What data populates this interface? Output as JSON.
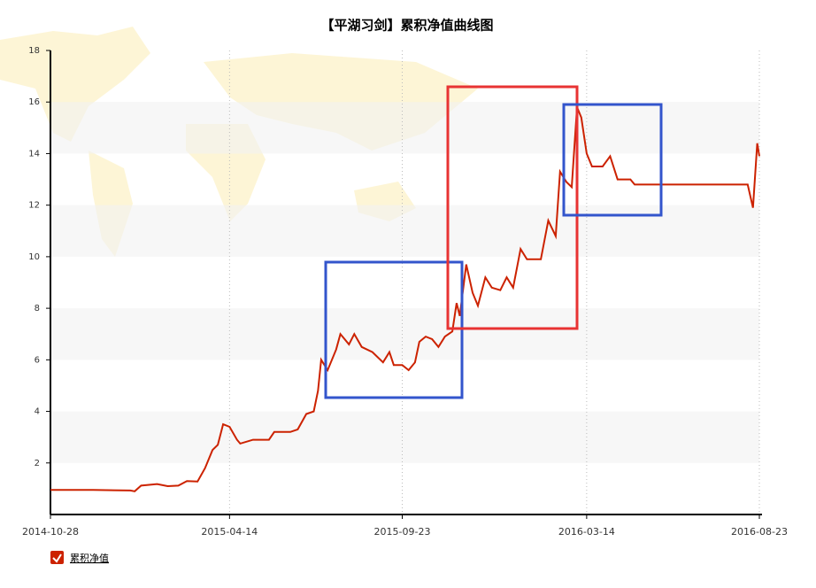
{
  "chart_data": {
    "type": "line",
    "title": "【平湖习剑】累积净值曲线图",
    "x": [
      "2014-10-28",
      "2014-12-07",
      "2015-01-11",
      "2015-01-15",
      "2015-01-21",
      "2015-02-05",
      "2015-02-15",
      "2015-02-25",
      "2015-03-05",
      "2015-03-15",
      "2015-03-22",
      "2015-03-29",
      "2015-04-03",
      "2015-04-08",
      "2015-04-14",
      "2015-04-21",
      "2015-04-24",
      "2015-05-06",
      "2015-05-21",
      "2015-05-26",
      "2015-06-10",
      "2015-06-17",
      "2015-06-25",
      "2015-07-02",
      "2015-07-06",
      "2015-07-09",
      "2015-07-15",
      "2015-07-23",
      "2015-07-27",
      "2015-08-04",
      "2015-08-09",
      "2015-08-16",
      "2015-08-26",
      "2015-09-05",
      "2015-09-11",
      "2015-09-15",
      "2015-09-23",
      "2015-09-29",
      "2015-10-05",
      "2015-10-09",
      "2015-10-15",
      "2015-10-21",
      "2015-10-27",
      "2015-11-02",
      "2015-11-09",
      "2015-11-13",
      "2015-11-16",
      "2015-11-22",
      "2015-11-28",
      "2015-12-03",
      "2015-12-10",
      "2015-12-16",
      "2015-12-24",
      "2015-12-30",
      "2016-01-05",
      "2016-01-12",
      "2016-01-18",
      "2016-01-31",
      "2016-02-07",
      "2016-02-14",
      "2016-02-18",
      "2016-02-24",
      "2016-02-29",
      "2016-03-05",
      "2016-03-09",
      "2016-03-14",
      "2016-03-19",
      "2016-03-29",
      "2016-04-05",
      "2016-04-12",
      "2016-04-24",
      "2016-04-28",
      "2016-08-12",
      "2016-08-17",
      "2016-08-21",
      "2016-08-23"
    ],
    "series": [
      {
        "name": "累积净值",
        "color": "#cc2200",
        "values": [
          0.95,
          0.95,
          0.93,
          0.9,
          1.12,
          1.18,
          1.1,
          1.12,
          1.3,
          1.28,
          1.8,
          2.5,
          2.7,
          3.5,
          3.4,
          2.9,
          2.75,
          2.9,
          2.9,
          3.2,
          3.2,
          3.3,
          3.9,
          4.0,
          4.8,
          6.0,
          5.6,
          6.4,
          7.0,
          6.6,
          7.0,
          6.5,
          6.3,
          5.9,
          6.3,
          5.8,
          5.8,
          5.6,
          5.9,
          6.7,
          6.9,
          6.8,
          6.5,
          6.9,
          7.1,
          8.2,
          7.7,
          9.7,
          8.6,
          8.1,
          9.2,
          8.8,
          8.7,
          9.2,
          8.8,
          10.3,
          9.9,
          9.9,
          11.4,
          10.8,
          13.3,
          12.9,
          12.7,
          15.8,
          15.4,
          14.0,
          13.5,
          13.5,
          13.9,
          13.0,
          13.0,
          12.8,
          12.8,
          11.9,
          14.4,
          13.9
        ]
      }
    ],
    "xlim": [
      "2014-10-28",
      "2016-08-23"
    ],
    "xticks": [
      "2014-10-28",
      "2015-04-14",
      "2015-09-23",
      "2016-03-14",
      "2016-08-23"
    ],
    "ylim": [
      0,
      18
    ],
    "yticks": [
      2,
      4,
      6,
      8,
      10,
      12,
      14,
      16,
      18
    ],
    "grid": true,
    "legend": "bottom-left"
  }
}
